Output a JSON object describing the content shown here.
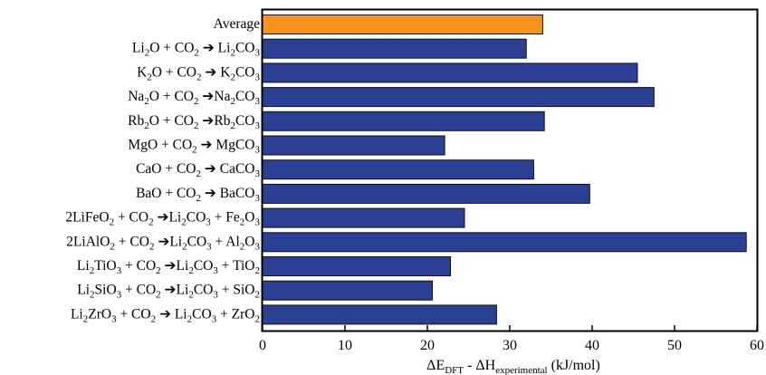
{
  "chart_data": {
    "type": "bar",
    "orientation": "horizontal",
    "categories": [
      {
        "id": "average",
        "parts": [
          [
            "Average",
            false
          ]
        ]
      },
      {
        "id": "li2o",
        "parts": [
          [
            "Li",
            false
          ],
          [
            "2",
            true
          ],
          [
            "O + CO",
            false
          ],
          [
            "2",
            true
          ],
          [
            " ",
            false
          ],
          [
            "➔",
            false
          ],
          [
            " Li",
            false
          ],
          [
            "2",
            true
          ],
          [
            "CO",
            false
          ],
          [
            "3",
            true
          ]
        ]
      },
      {
        "id": "k2o",
        "parts": [
          [
            "K",
            false
          ],
          [
            "2",
            true
          ],
          [
            "O + CO",
            false
          ],
          [
            "2",
            true
          ],
          [
            " ",
            false
          ],
          [
            "➔",
            false
          ],
          [
            " K",
            false
          ],
          [
            "2",
            true
          ],
          [
            "CO",
            false
          ],
          [
            "3",
            true
          ]
        ]
      },
      {
        "id": "na2o",
        "parts": [
          [
            "Na",
            false
          ],
          [
            "2",
            true
          ],
          [
            "O + CO",
            false
          ],
          [
            "2",
            true
          ],
          [
            " ",
            false
          ],
          [
            "➔",
            false
          ],
          [
            "Na",
            false
          ],
          [
            "2",
            true
          ],
          [
            "CO",
            false
          ],
          [
            "3",
            true
          ]
        ]
      },
      {
        "id": "rb2o",
        "parts": [
          [
            "Rb",
            false
          ],
          [
            "2",
            true
          ],
          [
            "O + CO",
            false
          ],
          [
            "2",
            true
          ],
          [
            " ",
            false
          ],
          [
            "➔",
            false
          ],
          [
            "Rb",
            false
          ],
          [
            "2",
            true
          ],
          [
            "CO",
            false
          ],
          [
            "3",
            true
          ]
        ]
      },
      {
        "id": "mgo",
        "parts": [
          [
            "MgO + CO",
            false
          ],
          [
            "2",
            true
          ],
          [
            " ",
            false
          ],
          [
            "➔",
            false
          ],
          [
            " MgCO",
            false
          ],
          [
            "3",
            true
          ]
        ]
      },
      {
        "id": "cao",
        "parts": [
          [
            "CaO + CO",
            false
          ],
          [
            "2",
            true
          ],
          [
            " ",
            false
          ],
          [
            "➔",
            false
          ],
          [
            " CaCO",
            false
          ],
          [
            "3",
            true
          ]
        ]
      },
      {
        "id": "bao",
        "parts": [
          [
            "BaO + CO",
            false
          ],
          [
            "2",
            true
          ],
          [
            " ",
            false
          ],
          [
            "➔",
            false
          ],
          [
            " BaCO",
            false
          ],
          [
            "3",
            true
          ]
        ]
      },
      {
        "id": "lifeo2",
        "parts": [
          [
            "2LiFeO",
            false
          ],
          [
            "2",
            true
          ],
          [
            " + CO",
            false
          ],
          [
            "2",
            true
          ],
          [
            " ",
            false
          ],
          [
            "➔",
            false
          ],
          [
            "Li",
            false
          ],
          [
            "2",
            true
          ],
          [
            "CO",
            false
          ],
          [
            "3",
            true
          ],
          [
            " + Fe",
            false
          ],
          [
            "2",
            true
          ],
          [
            "O",
            false
          ],
          [
            "3",
            true
          ]
        ]
      },
      {
        "id": "lialo2",
        "parts": [
          [
            "2LiAlO",
            false
          ],
          [
            "2",
            true
          ],
          [
            " + CO",
            false
          ],
          [
            "2",
            true
          ],
          [
            " ",
            false
          ],
          [
            "➔",
            false
          ],
          [
            "Li",
            false
          ],
          [
            "2",
            true
          ],
          [
            "CO",
            false
          ],
          [
            "3",
            true
          ],
          [
            " + Al",
            false
          ],
          [
            "2",
            true
          ],
          [
            "O",
            false
          ],
          [
            "3",
            true
          ]
        ]
      },
      {
        "id": "li2tio3",
        "parts": [
          [
            "Li",
            false
          ],
          [
            "2",
            true
          ],
          [
            "TiO",
            false
          ],
          [
            "3",
            true
          ],
          [
            " + CO",
            false
          ],
          [
            "2",
            true
          ],
          [
            " ",
            false
          ],
          [
            "➔",
            false
          ],
          [
            "Li",
            false
          ],
          [
            "2",
            true
          ],
          [
            "CO",
            false
          ],
          [
            "3",
            true
          ],
          [
            " + TiO",
            false
          ],
          [
            "2",
            true
          ]
        ]
      },
      {
        "id": "li2sio3",
        "parts": [
          [
            "Li",
            false
          ],
          [
            "2",
            true
          ],
          [
            "SiO",
            false
          ],
          [
            "3",
            true
          ],
          [
            " + CO",
            false
          ],
          [
            "2",
            true
          ],
          [
            " ",
            false
          ],
          [
            "➔",
            false
          ],
          [
            "Li",
            false
          ],
          [
            "2",
            true
          ],
          [
            "CO",
            false
          ],
          [
            "3",
            true
          ],
          [
            " + SiO",
            false
          ],
          [
            "2",
            true
          ]
        ]
      },
      {
        "id": "li2zro3",
        "parts": [
          [
            "Li",
            false
          ],
          [
            "2",
            true
          ],
          [
            "ZrO",
            false
          ],
          [
            "3",
            true
          ],
          [
            " + CO",
            false
          ],
          [
            "2",
            true
          ],
          [
            " ",
            false
          ],
          [
            "➔",
            false
          ],
          [
            " Li",
            false
          ],
          [
            "2",
            true
          ],
          [
            "CO",
            false
          ],
          [
            "3",
            true
          ],
          [
            " + ZrO",
            false
          ],
          [
            "2",
            true
          ]
        ]
      }
    ],
    "values": [
      34.0,
      32.0,
      45.5,
      47.5,
      34.2,
      22.1,
      32.9,
      39.7,
      24.5,
      58.7,
      22.8,
      20.6,
      28.4
    ],
    "bar_colors": [
      "#f7941d",
      "#2b3f95",
      "#2b3f95",
      "#2b3f95",
      "#2b3f95",
      "#2b3f95",
      "#2b3f95",
      "#2b3f95",
      "#2b3f95",
      "#2b3f95",
      "#2b3f95",
      "#2b3f95",
      "#2b3f95"
    ],
    "xlim": [
      0,
      60
    ],
    "xticks": [
      "0",
      "10",
      "20",
      "30",
      "40",
      "50",
      "60"
    ],
    "xlabel_parts": [
      [
        "ΔE",
        false
      ],
      [
        "DFT",
        true
      ],
      [
        " - ΔH",
        false
      ],
      [
        "experimental",
        true
      ],
      [
        " (kJ/mol)",
        false
      ]
    ],
    "title": "",
    "ylabel": "",
    "grid": false,
    "legend": "none"
  }
}
